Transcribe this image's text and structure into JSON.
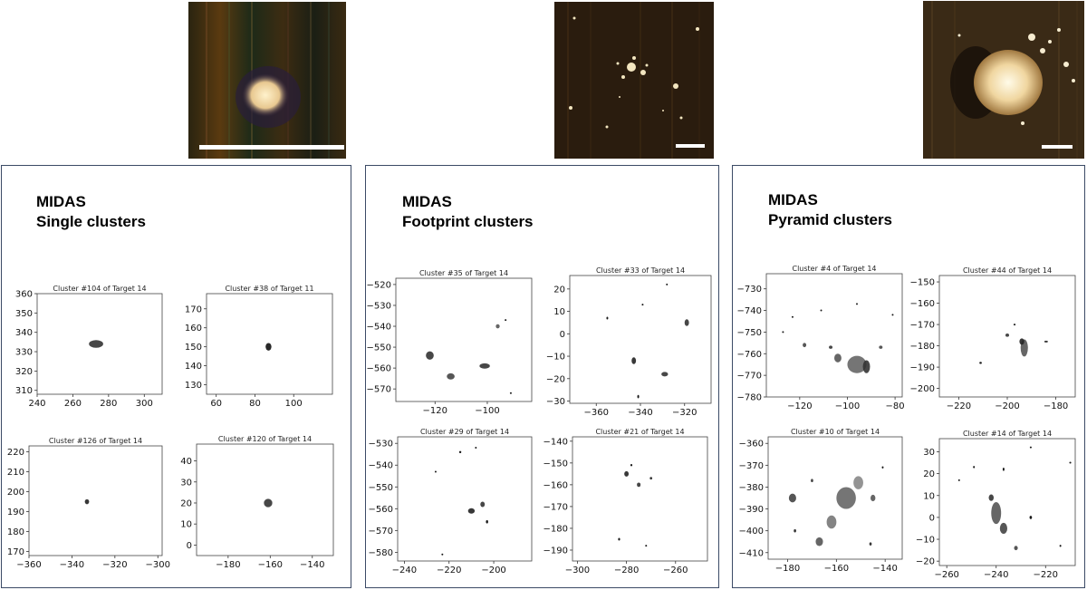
{
  "photos": [
    {
      "name": "photo-single-cluster",
      "desc_icon": "microscope-image"
    },
    {
      "name": "photo-footprint-cluster",
      "desc_icon": "microscope-image"
    },
    {
      "name": "photo-pyramid-cluster",
      "desc_icon": "microscope-image"
    }
  ],
  "panels": [
    {
      "title_line1": "MIDAS",
      "title_line2": "Single clusters"
    },
    {
      "title_line1": "MIDAS",
      "title_line2": "Footprint clusters"
    },
    {
      "title_line1": "MIDAS",
      "title_line2": "Pyramid clusters"
    }
  ],
  "chart_data": [
    {
      "type": "heatmap",
      "title": "Cluster #104 of Target 14",
      "xlim": [
        240,
        310
      ],
      "ylim": [
        308,
        360
      ],
      "xticks": [
        240,
        260,
        280,
        300
      ],
      "yticks": [
        310,
        320,
        330,
        340,
        350,
        360
      ],
      "blobs": [
        {
          "x": 273,
          "y": 334,
          "w": 8,
          "h": 4,
          "shade": "#333"
        }
      ]
    },
    {
      "type": "heatmap",
      "title": "Cluster #38 of Target 11",
      "xlim": [
        55,
        120
      ],
      "ylim": [
        125,
        178
      ],
      "xticks": [
        60,
        80,
        100
      ],
      "yticks": [
        130,
        140,
        150,
        160,
        170
      ],
      "blobs": [
        {
          "x": 87,
          "y": 150,
          "w": 3,
          "h": 4,
          "shade": "#111"
        }
      ]
    },
    {
      "type": "heatmap",
      "title": "Cluster #126 of Target 14",
      "xlim": [
        -360,
        -298
      ],
      "ylim": [
        168,
        223
      ],
      "xticks": [
        -360,
        -340,
        -320,
        -300
      ],
      "yticks": [
        170,
        180,
        190,
        200,
        210,
        220
      ],
      "blobs": [
        {
          "x": -333,
          "y": 195,
          "w": 2,
          "h": 2.5,
          "shade": "#222"
        }
      ]
    },
    {
      "type": "heatmap",
      "title": "Cluster #120 of Target 14",
      "xlim": [
        -195,
        -130
      ],
      "ylim": [
        -5,
        48
      ],
      "xticks": [
        -180,
        -160,
        -140
      ],
      "yticks": [
        0,
        10,
        20,
        30,
        40
      ],
      "blobs": [
        {
          "x": -161,
          "y": 20,
          "w": 4,
          "h": 4,
          "shade": "#333"
        }
      ]
    },
    {
      "type": "heatmap",
      "title": "Cluster #35 of Target 14",
      "xlim": [
        -135,
        -83
      ],
      "ylim": [
        -576,
        -517
      ],
      "xticks": [
        -120,
        -100
      ],
      "yticks": [
        -520,
        -530,
        -540,
        -550,
        -560,
        -570
      ],
      "blobs": [
        {
          "x": -122,
          "y": -554,
          "w": 3,
          "h": 4,
          "shade": "#333"
        },
        {
          "x": -114,
          "y": -564,
          "w": 3,
          "h": 3,
          "shade": "#444"
        },
        {
          "x": -101,
          "y": -559,
          "w": 4,
          "h": 2.5,
          "shade": "#333"
        },
        {
          "x": -96,
          "y": -540,
          "w": 1.5,
          "h": 2,
          "shade": "#555"
        },
        {
          "x": -91,
          "y": -572,
          "w": 0.6,
          "h": 0.8,
          "shade": "#000"
        },
        {
          "x": -93,
          "y": -537,
          "w": 0.6,
          "h": 0.6,
          "shade": "#000"
        }
      ]
    },
    {
      "type": "heatmap",
      "title": "Cluster #33 of Target 14",
      "xlim": [
        -372,
        -308
      ],
      "ylim": [
        -31,
        26
      ],
      "xticks": [
        -360,
        -340,
        -320
      ],
      "yticks": [
        20,
        10,
        0,
        -10,
        -20,
        -30
      ],
      "blobs": [
        {
          "x": -343,
          "y": -12,
          "w": 2,
          "h": 3,
          "shade": "#222"
        },
        {
          "x": -329,
          "y": -18,
          "w": 3,
          "h": 2,
          "shade": "#333"
        },
        {
          "x": -319,
          "y": 5,
          "w": 2,
          "h": 3,
          "shade": "#333"
        },
        {
          "x": -355,
          "y": 7,
          "w": 0.6,
          "h": 1.2,
          "shade": "#000"
        },
        {
          "x": -341,
          "y": -28,
          "w": 0.6,
          "h": 1.5,
          "shade": "#000"
        },
        {
          "x": -328,
          "y": 22,
          "w": 0.5,
          "h": 0.8,
          "shade": "#000"
        },
        {
          "x": -339,
          "y": 13,
          "w": 0.5,
          "h": 0.5,
          "shade": "#000"
        }
      ]
    },
    {
      "type": "heatmap",
      "title": "Cluster #29 of Target 14",
      "xlim": [
        -243,
        -183
      ],
      "ylim": [
        -584,
        -527
      ],
      "xticks": [
        -240,
        -220,
        -200
      ],
      "yticks": [
        -530,
        -540,
        -550,
        -560,
        -570,
        -580
      ],
      "blobs": [
        {
          "x": -210,
          "y": -561,
          "w": 3,
          "h": 2.5,
          "shade": "#222"
        },
        {
          "x": -205,
          "y": -558,
          "w": 2,
          "h": 2.5,
          "shade": "#333"
        },
        {
          "x": -215,
          "y": -534,
          "w": 1,
          "h": 1,
          "shade": "#000"
        },
        {
          "x": -223,
          "y": -581,
          "w": 0.8,
          "h": 0.8,
          "shade": "#000"
        },
        {
          "x": -226,
          "y": -543,
          "w": 0.8,
          "h": 0.5,
          "shade": "#000"
        },
        {
          "x": -203,
          "y": -566,
          "w": 1,
          "h": 1.5,
          "shade": "#000"
        },
        {
          "x": -208,
          "y": -532,
          "w": 0.6,
          "h": 0.8,
          "shade": "#000"
        }
      ]
    },
    {
      "type": "heatmap",
      "title": "Cluster #21 of Target 14",
      "xlim": [
        -302,
        -247
      ],
      "ylim": [
        -195,
        -138
      ],
      "xticks": [
        -300,
        -280,
        -260
      ],
      "yticks": [
        -140,
        -150,
        -160,
        -170,
        -180,
        -190
      ],
      "blobs": [
        {
          "x": -280,
          "y": -155,
          "w": 1.8,
          "h": 2.5,
          "shade": "#222"
        },
        {
          "x": -275,
          "y": -160,
          "w": 1.5,
          "h": 2,
          "shade": "#333"
        },
        {
          "x": -270,
          "y": -157,
          "w": 1,
          "h": 1.2,
          "shade": "#222"
        },
        {
          "x": -283,
          "y": -185,
          "w": 0.8,
          "h": 1.2,
          "shade": "#000"
        },
        {
          "x": -278,
          "y": -151,
          "w": 0.8,
          "h": 1,
          "shade": "#000"
        },
        {
          "x": -272,
          "y": -188,
          "w": 0.6,
          "h": 0.8,
          "shade": "#000"
        }
      ]
    },
    {
      "type": "heatmap",
      "title": "Cluster #4 of Target 14",
      "xlim": [
        -134,
        -77
      ],
      "ylim": [
        -780,
        -723
      ],
      "xticks": [
        -120,
        -100,
        -80
      ],
      "yticks": [
        -730,
        -740,
        -750,
        -760,
        -770,
        -780
      ],
      "blobs": [
        {
          "x": -96,
          "y": -765,
          "w": 8,
          "h": 8,
          "shade": "#666"
        },
        {
          "x": -92,
          "y": -766,
          "w": 3,
          "h": 6,
          "shade": "#333"
        },
        {
          "x": -104,
          "y": -762,
          "w": 3,
          "h": 4,
          "shade": "#555"
        },
        {
          "x": -118,
          "y": -756,
          "w": 1.5,
          "h": 2,
          "shade": "#444"
        },
        {
          "x": -107,
          "y": -757,
          "w": 1.5,
          "h": 1.5,
          "shade": "#333"
        },
        {
          "x": -86,
          "y": -757,
          "w": 1.5,
          "h": 1.5,
          "shade": "#444"
        },
        {
          "x": -127,
          "y": -750,
          "w": 0.6,
          "h": 0.8,
          "shade": "#000"
        },
        {
          "x": -111,
          "y": -740,
          "w": 0.6,
          "h": 0.6,
          "shade": "#000"
        },
        {
          "x": -123,
          "y": -743,
          "w": 0.6,
          "h": 0.6,
          "shade": "#000"
        },
        {
          "x": -81,
          "y": -742,
          "w": 0.6,
          "h": 0.8,
          "shade": "#000"
        },
        {
          "x": -96,
          "y": -737,
          "w": 0.6,
          "h": 0.6,
          "shade": "#000"
        }
      ]
    },
    {
      "type": "heatmap",
      "title": "Cluster #44 of Target 14",
      "xlim": [
        -228,
        -172
      ],
      "ylim": [
        -204,
        -147
      ],
      "xticks": [
        -220,
        -200,
        -180
      ],
      "yticks": [
        -150,
        -160,
        -170,
        -180,
        -190,
        -200
      ],
      "blobs": [
        {
          "x": -193,
          "y": -181,
          "w": 3,
          "h": 8,
          "shade": "#555"
        },
        {
          "x": -194,
          "y": -178,
          "w": 2,
          "h": 3,
          "shade": "#222"
        },
        {
          "x": -200,
          "y": -175,
          "w": 1.5,
          "h": 1.5,
          "shade": "#333"
        },
        {
          "x": -211,
          "y": -188,
          "w": 1,
          "h": 1,
          "shade": "#000"
        },
        {
          "x": -197,
          "y": -170,
          "w": 0.8,
          "h": 0.8,
          "shade": "#000"
        },
        {
          "x": -184,
          "y": -178,
          "w": 1.5,
          "h": 0.5,
          "shade": "#222"
        }
      ]
    },
    {
      "type": "heatmap",
      "title": "Cluster #10 of Target 14",
      "xlim": [
        -188,
        -133
      ],
      "ylim": [
        -413,
        -357
      ],
      "xticks": [
        -180,
        -160,
        -140
      ],
      "yticks": [
        -360,
        -370,
        -380,
        -390,
        -400,
        -410
      ],
      "blobs": [
        {
          "x": -156,
          "y": -385,
          "w": 8,
          "h": 10,
          "shade": "#666"
        },
        {
          "x": -151,
          "y": -378,
          "w": 4,
          "h": 6,
          "shade": "#888"
        },
        {
          "x": -162,
          "y": -396,
          "w": 4,
          "h": 6,
          "shade": "#777"
        },
        {
          "x": -178,
          "y": -385,
          "w": 3,
          "h": 4,
          "shade": "#444"
        },
        {
          "x": -167,
          "y": -405,
          "w": 3,
          "h": 4,
          "shade": "#555"
        },
        {
          "x": -145,
          "y": -385,
          "w": 2,
          "h": 3,
          "shade": "#555"
        },
        {
          "x": -170,
          "y": -377,
          "w": 1,
          "h": 1.5,
          "shade": "#333"
        },
        {
          "x": -177,
          "y": -400,
          "w": 1,
          "h": 1.5,
          "shade": "#222"
        },
        {
          "x": -146,
          "y": -406,
          "w": 1,
          "h": 1.5,
          "shade": "#222"
        },
        {
          "x": -141,
          "y": -371,
          "w": 0.6,
          "h": 1,
          "shade": "#000"
        }
      ]
    },
    {
      "type": "heatmap",
      "title": "Cluster #14 of Target 14",
      "xlim": [
        -263,
        -208
      ],
      "ylim": [
        -22,
        36
      ],
      "xticks": [
        -260,
        -240,
        -220
      ],
      "yticks": [
        30,
        20,
        10,
        0,
        -10,
        -20
      ],
      "blobs": [
        {
          "x": -240,
          "y": 2,
          "w": 4,
          "h": 10,
          "shade": "#555"
        },
        {
          "x": -237,
          "y": -5,
          "w": 3,
          "h": 5,
          "shade": "#444"
        },
        {
          "x": -242,
          "y": 9,
          "w": 2,
          "h": 3,
          "shade": "#333"
        },
        {
          "x": -232,
          "y": -14,
          "w": 1.5,
          "h": 2,
          "shade": "#444"
        },
        {
          "x": -226,
          "y": 0,
          "w": 1,
          "h": 1.5,
          "shade": "#000"
        },
        {
          "x": -214,
          "y": -13,
          "w": 0.6,
          "h": 1,
          "shade": "#000"
        },
        {
          "x": -249,
          "y": 23,
          "w": 0.6,
          "h": 1,
          "shade": "#000"
        },
        {
          "x": -255,
          "y": 17,
          "w": 0.6,
          "h": 0.8,
          "shade": "#000"
        },
        {
          "x": -226,
          "y": 32,
          "w": 0.5,
          "h": 0.8,
          "shade": "#000"
        },
        {
          "x": -210,
          "y": 25,
          "w": 0.8,
          "h": 0.8,
          "shade": "#000"
        },
        {
          "x": -237,
          "y": 22,
          "w": 0.6,
          "h": 1.5,
          "shade": "#000"
        }
      ]
    }
  ]
}
